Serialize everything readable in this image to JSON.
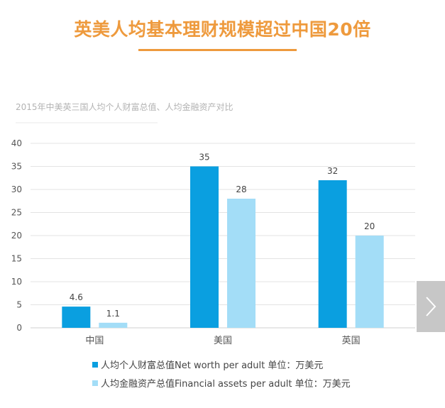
{
  "header": {
    "title": "英美人均基本理财规模超过中国20倍"
  },
  "chart_data": {
    "type": "bar",
    "title": "2015年中美英三国人均个人财富总值、人均金融资产对比",
    "categories": [
      "中国",
      "美国",
      "英国"
    ],
    "series": [
      {
        "name": "人均个人财富总值Net worth per adult 单位：万美元",
        "values": [
          4.6,
          35,
          32
        ],
        "labels": [
          "4.6",
          "35",
          "32"
        ],
        "color": "#0A9FE0"
      },
      {
        "name": "人均金融资产总值Financial assets per adult 单位：万美元",
        "values": [
          1.1,
          28,
          20
        ],
        "labels": [
          "1.1",
          "28",
          "20"
        ],
        "color": "#A3DDF7"
      }
    ],
    "yticks": [
      "0",
      "5",
      "10",
      "15",
      "20",
      "25",
      "30",
      "35",
      "40"
    ],
    "ylim": [
      0,
      40
    ],
    "grid": true,
    "legend": "bottom"
  },
  "nav": {
    "next_icon": "chevron-right-icon"
  },
  "colors": {
    "accent": "#EE9A3D",
    "grid": "#D9D9D9"
  }
}
